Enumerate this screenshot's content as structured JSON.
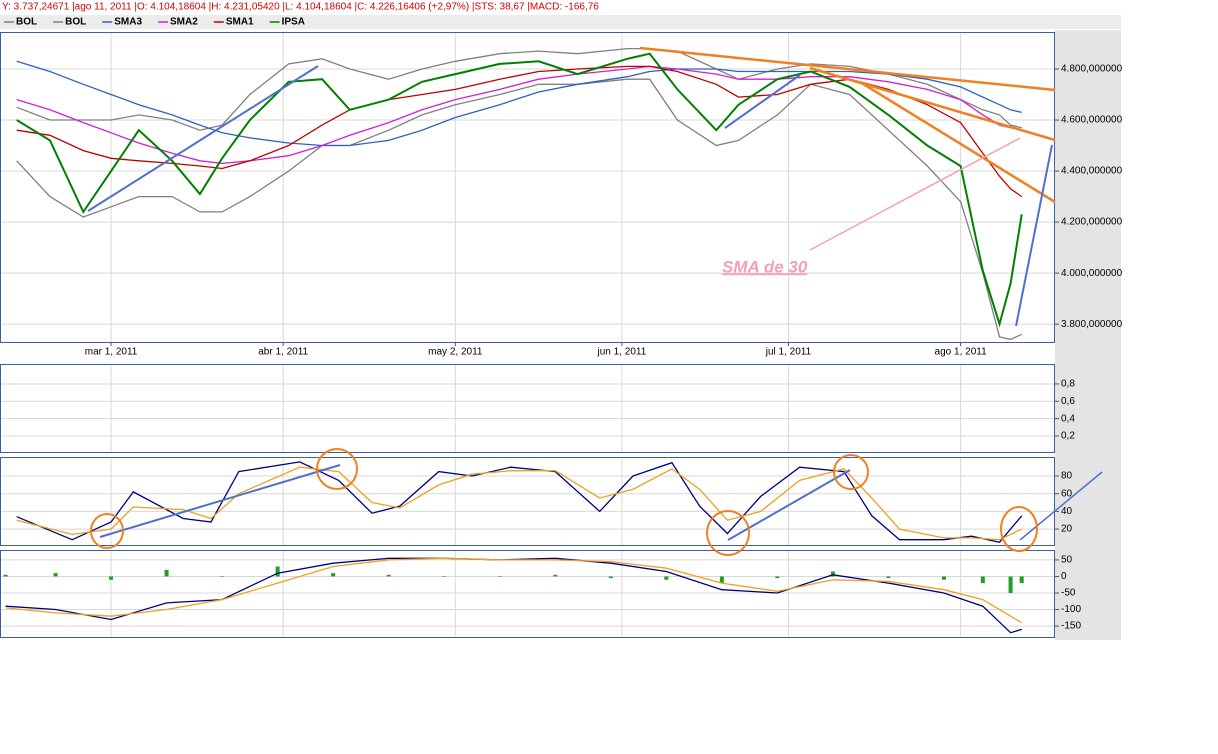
{
  "header": "Y: 3.737,24671 |ago 11, 2011 |O: 4.104,18604 |H: 4.231,05420 |L: 4.104,18604 |C: 4.226,16406 (+2,97%) |STS: 38,67 |MACD: -166,76",
  "chart_data": [
    {
      "type": "line",
      "annotation": "SMA de 30",
      "x": [
        -17,
        -11,
        -5,
        0,
        5,
        11,
        16,
        20,
        25,
        32,
        38,
        43,
        50,
        56,
        62,
        70,
        77,
        84,
        93,
        97,
        102,
        109,
        113,
        120,
        126,
        133,
        140,
        147,
        153,
        157,
        160,
        162,
        164
      ],
      "xlim": [
        -20,
        170
      ],
      "xticks": [
        {
          "value": 0,
          "label": "mar 1, 2011"
        },
        {
          "value": 31,
          "label": "abr 1, 2011"
        },
        {
          "value": 62,
          "label": "may 2, 2011"
        },
        {
          "value": 92,
          "label": "jun 1, 2011"
        },
        {
          "value": 122,
          "label": "jul 1, 2011"
        },
        {
          "value": 153,
          "label": "ago 1, 2011"
        }
      ],
      "ylim": [
        3730,
        4945
      ],
      "yticks": [
        {
          "value": 3800,
          "label": "3.800,000000"
        },
        {
          "value": 4000,
          "label": "4.000,000000"
        },
        {
          "value": 4200,
          "label": "4.200,000000"
        },
        {
          "value": 4400,
          "label": "4.400,000000"
        },
        {
          "value": 4600,
          "label": "4.600,000000"
        },
        {
          "value": 4800,
          "label": "4.800,000000"
        }
      ],
      "grid": true,
      "series": [
        {
          "name": "BOL",
          "color": "#808080",
          "values": [
            4650,
            4600,
            4600,
            4600,
            4620,
            4600,
            4560,
            4580,
            4700,
            4820,
            4840,
            4800,
            4760,
            4800,
            4830,
            4860,
            4870,
            4860,
            4880,
            4880,
            4870,
            4800,
            4760,
            4800,
            4820,
            4810,
            4780,
            4740,
            4680,
            4640,
            4620,
            4580,
            4570
          ]
        },
        {
          "name": "BOL",
          "color": "#808080",
          "values": [
            4440,
            4300,
            4220,
            4260,
            4300,
            4300,
            4240,
            4240,
            4300,
            4400,
            4500,
            4500,
            4560,
            4620,
            4660,
            4700,
            4740,
            4740,
            4760,
            4760,
            4600,
            4500,
            4520,
            4620,
            4740,
            4700,
            4560,
            4420,
            4280,
            4000,
            3750,
            3740,
            3760
          ]
        },
        {
          "name": "SMA3",
          "color": "#3060c0",
          "values": [
            4830,
            4790,
            4740,
            4700,
            4660,
            4620,
            4580,
            4550,
            4530,
            4510,
            4500,
            4500,
            4520,
            4560,
            4610,
            4660,
            4710,
            4740,
            4770,
            4790,
            4800,
            4800,
            4790,
            4790,
            4790,
            4790,
            4780,
            4760,
            4730,
            4690,
            4660,
            4640,
            4630
          ]
        },
        {
          "name": "SMA2",
          "color": "#d020d0",
          "values": [
            4680,
            4640,
            4590,
            4550,
            4510,
            4470,
            4440,
            4430,
            4440,
            4460,
            4500,
            4540,
            4590,
            4640,
            4680,
            4720,
            4760,
            4780,
            4800,
            4810,
            4800,
            4780,
            4760,
            4760,
            4770,
            4770,
            4750,
            4720,
            4680,
            4620,
            4580,
            4570,
            4560
          ]
        },
        {
          "name": "SMA1",
          "color": "#c00000",
          "values": [
            4560,
            4540,
            4480,
            4450,
            4440,
            4430,
            4420,
            4410,
            4440,
            4500,
            4580,
            4640,
            4680,
            4700,
            4720,
            4760,
            4790,
            4800,
            4810,
            4810,
            4790,
            4740,
            4690,
            4700,
            4740,
            4760,
            4720,
            4660,
            4590,
            4470,
            4380,
            4330,
            4300
          ]
        },
        {
          "name": "IPSA",
          "color": "#008000",
          "values": [
            4600,
            4520,
            4240,
            4400,
            4560,
            4440,
            4310,
            4450,
            4600,
            4750,
            4760,
            4640,
            4680,
            4750,
            4780,
            4820,
            4830,
            4780,
            4840,
            4860,
            4720,
            4560,
            4660,
            4760,
            4790,
            4730,
            4620,
            4500,
            4420,
            4010,
            3800,
            3960,
            4230
          ]
        }
      ]
    },
    {
      "type": "line",
      "xlim": [
        -20,
        170
      ],
      "ylim": [
        0.015,
        1.03
      ],
      "yticks": [
        {
          "value": 0.2,
          "label": "0,2"
        },
        {
          "value": 0.4,
          "label": "0,4"
        },
        {
          "value": 0.6,
          "label": "0,6"
        },
        {
          "value": 0.8,
          "label": "0,8"
        }
      ],
      "grid": true
    },
    {
      "type": "line",
      "xlim": [
        -20,
        170
      ],
      "ylim": [
        2,
        101.5
      ],
      "yticks": [
        20,
        40,
        60,
        80
      ],
      "grid": true,
      "x": [
        -17,
        -7,
        0,
        4,
        13,
        18,
        23,
        34,
        41,
        47,
        52,
        59,
        65,
        72,
        80,
        88,
        94,
        101,
        106,
        111,
        117,
        124,
        132,
        137,
        142,
        150,
        155,
        160,
        164
      ],
      "series": [
        {
          "color": "#000080",
          "values": [
            34,
            8,
            28,
            62,
            32,
            28,
            85,
            96,
            75,
            38,
            46,
            85,
            80,
            90,
            85,
            40,
            80,
            95,
            46,
            15,
            57,
            90,
            85,
            35,
            8,
            8,
            12,
            5,
            35
          ]
        },
        {
          "color": "#f0a020",
          "values": [
            30,
            14,
            20,
            45,
            42,
            32,
            60,
            90,
            85,
            50,
            44,
            70,
            82,
            86,
            86,
            55,
            65,
            88,
            65,
            30,
            40,
            75,
            88,
            55,
            20,
            10,
            10,
            8,
            20
          ]
        }
      ]
    },
    {
      "type": "line",
      "xlim": [
        -20,
        170
      ],
      "ylim": [
        -183,
        80
      ],
      "yticks": [
        -150,
        -100,
        -50,
        0,
        50
      ],
      "grid": true,
      "x": [
        -19,
        -10,
        0,
        10,
        20,
        30,
        40,
        50,
        60,
        70,
        80,
        90,
        100,
        110,
        120,
        130,
        140,
        150,
        157,
        162,
        164
      ],
      "series": [
        {
          "type": "bar",
          "color": "#20a020",
          "values": [
            5,
            10,
            -10,
            20,
            0,
            30,
            10,
            5,
            0,
            0,
            5,
            -5,
            -10,
            -20,
            -5,
            15,
            -5,
            -10,
            -20,
            -50,
            -20
          ]
        },
        {
          "color": "#000080",
          "values": [
            -90,
            -100,
            -130,
            -80,
            -70,
            10,
            40,
            55,
            55,
            50,
            55,
            40,
            15,
            -40,
            -50,
            5,
            -20,
            -50,
            -90,
            -170,
            -160
          ]
        },
        {
          "color": "#f0a020",
          "values": [
            -95,
            -110,
            -120,
            -100,
            -70,
            -20,
            30,
            50,
            55,
            50,
            50,
            45,
            25,
            -20,
            -45,
            -10,
            -15,
            -40,
            -70,
            -120,
            -140
          ]
        }
      ]
    }
  ]
}
